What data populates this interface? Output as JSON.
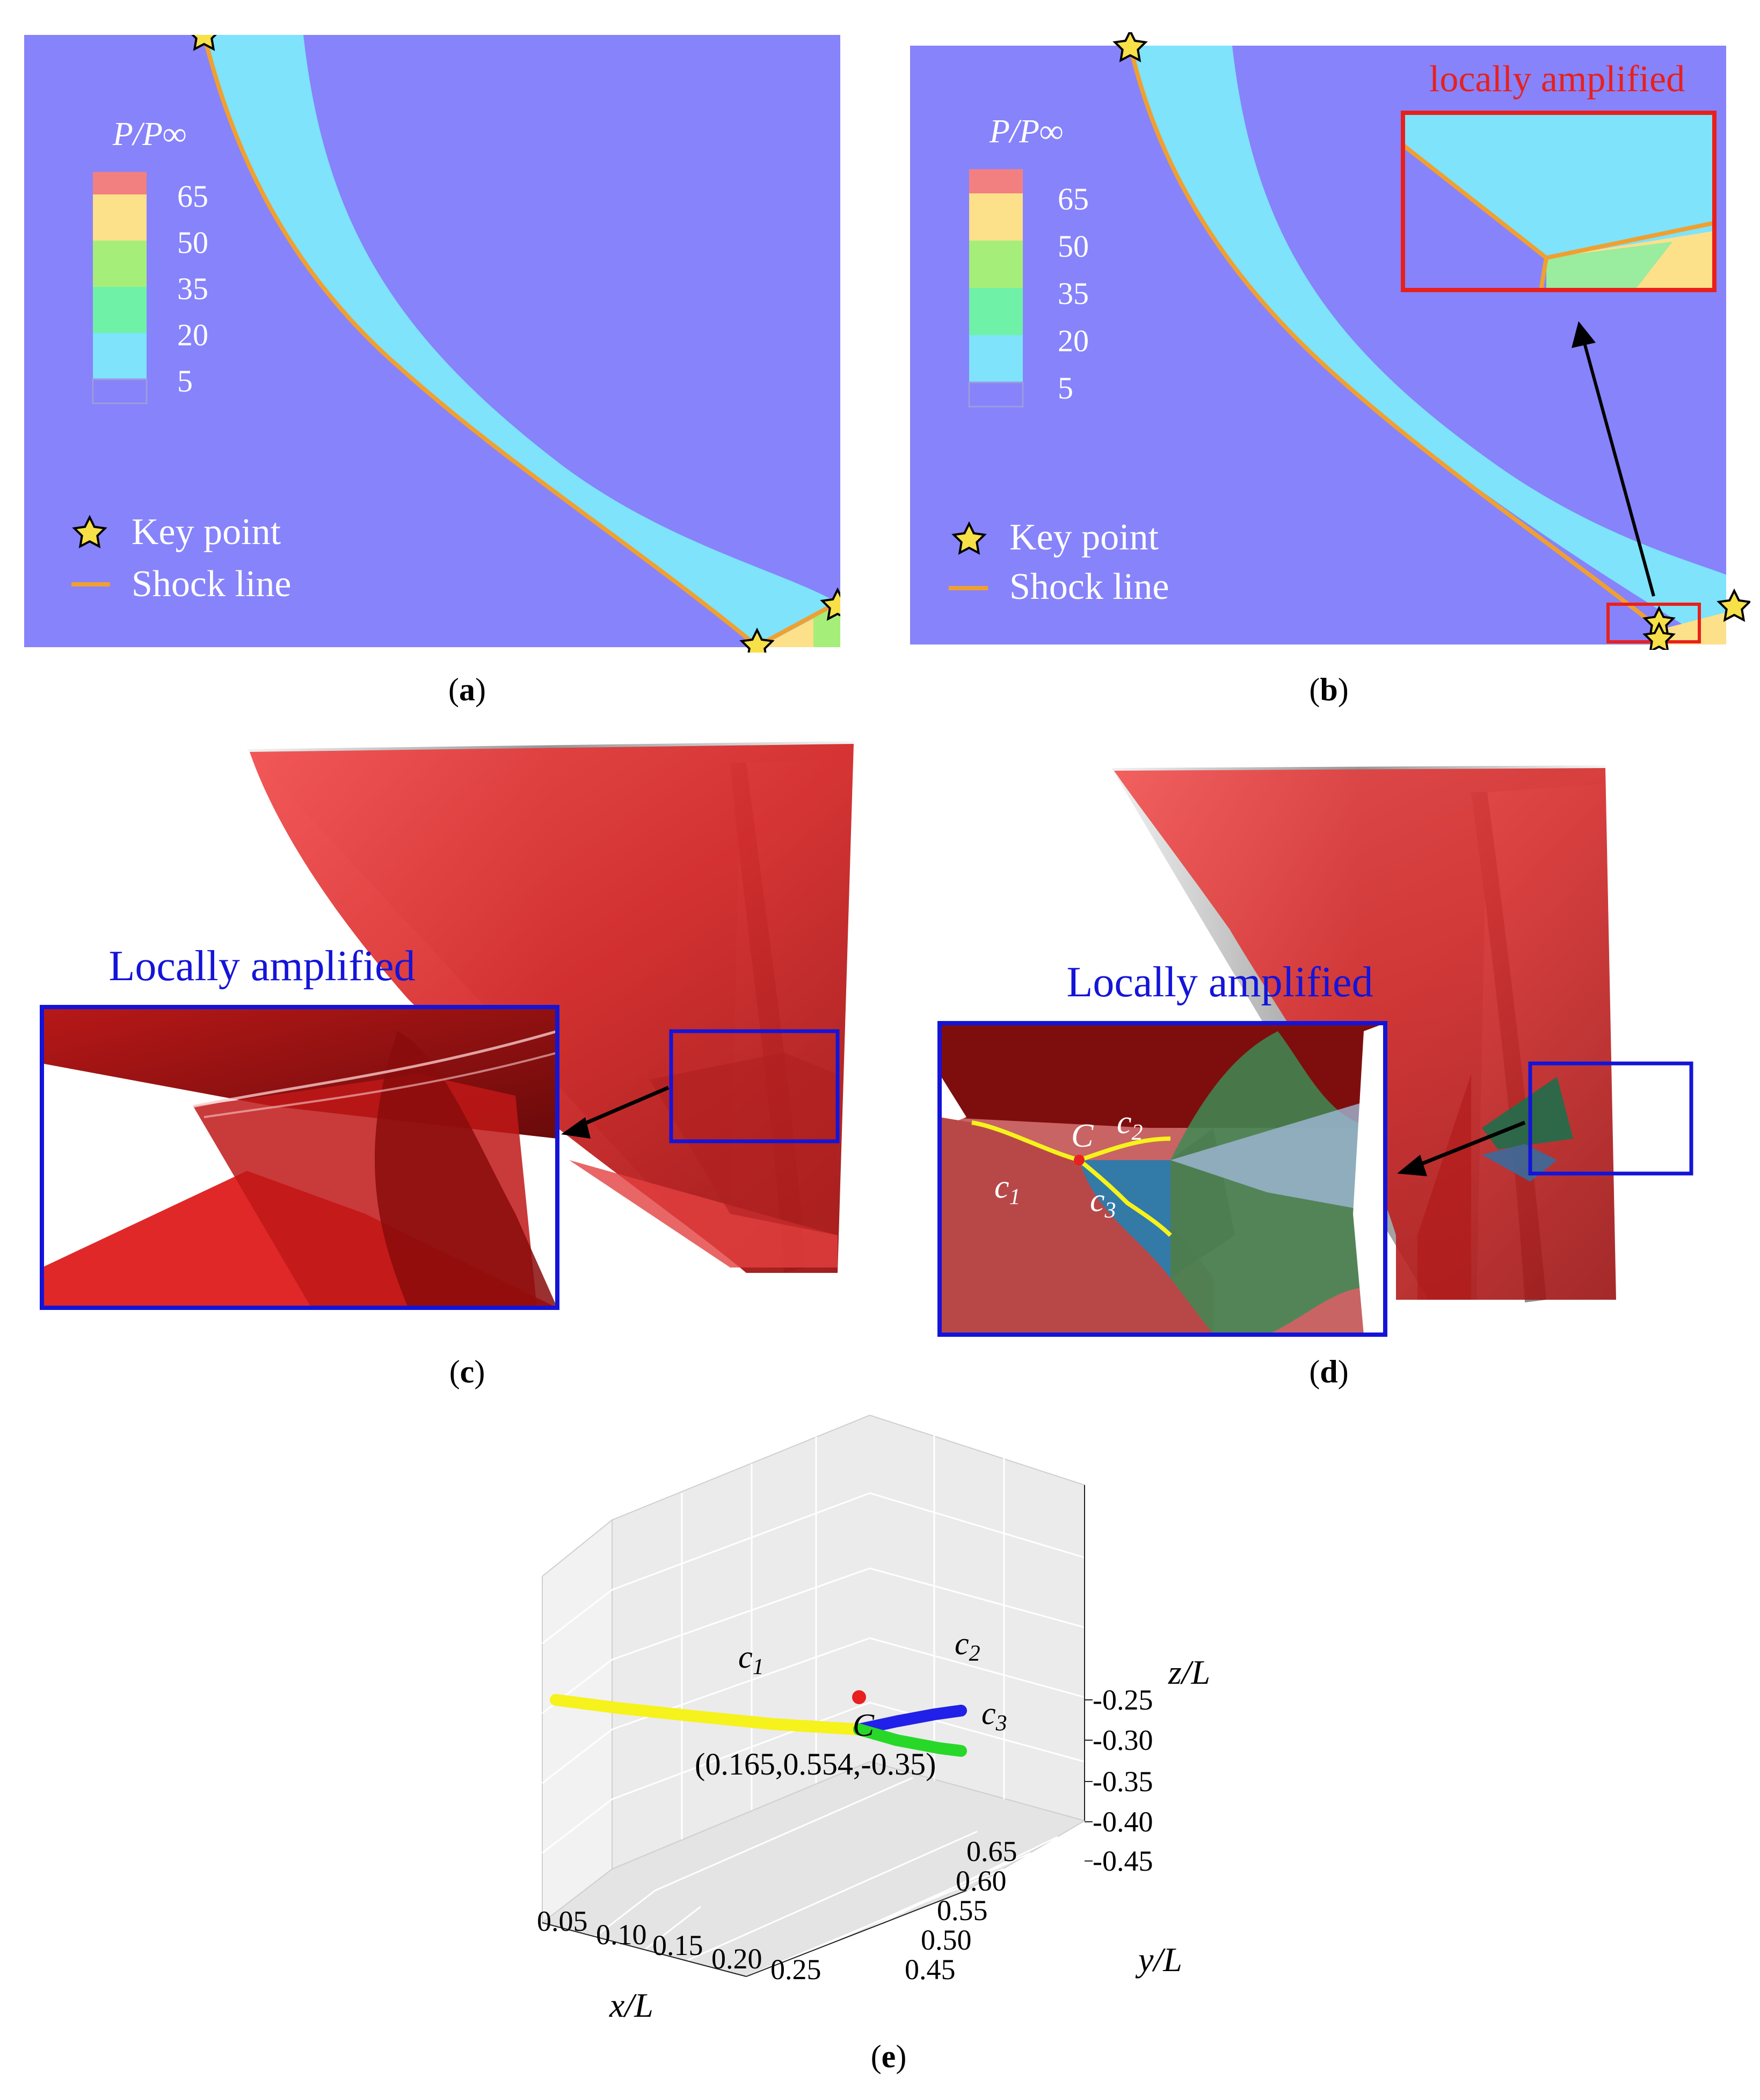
{
  "panels": {
    "a": {
      "caption_letter": "a",
      "colorbar": {
        "title": "P/P∞",
        "levels": [
          "65",
          "50",
          "35",
          "20",
          "5"
        ],
        "colors": [
          "#f28080",
          "#fde08a",
          "#a6ee7a",
          "#6ff1a8",
          "#7ee3fb",
          "#8783fb"
        ]
      },
      "legend": {
        "key_point": "Key point",
        "shock_line": "Shock line"
      }
    },
    "b": {
      "caption_letter": "b",
      "inset_title": "locally amplified",
      "colorbar": {
        "title": "P/P∞",
        "levels": [
          "65",
          "50",
          "35",
          "20",
          "5"
        ]
      },
      "legend": {
        "key_point": "Key point",
        "shock_line": "Shock line"
      }
    },
    "c": {
      "caption_letter": "c",
      "inset_title": "Locally amplified"
    },
    "d": {
      "caption_letter": "d",
      "inset_title": "Locally amplified",
      "labels": {
        "point": "C",
        "c1": "c",
        "c1_sub": "1",
        "c2": "c",
        "c2_sub": "2",
        "c3": "c",
        "c3_sub": "3"
      }
    },
    "e": {
      "caption_letter": "e"
    }
  },
  "colors": {
    "background_flow": "#8783fb",
    "shock_layer": "#7ee3fb",
    "shock_line": "#f0a030",
    "key_point_fill": "#f7e048",
    "inset_red": "#e8201c",
    "inset_blue": "#1414d8",
    "surface_red": "#d42a2a",
    "curve_yellow": "#f6f21c",
    "curve_blue": "#2020e8",
    "curve_green": "#28d828",
    "point_red": "#e82020"
  },
  "chart_data": {
    "type": "line3d",
    "xlabel": "x/L",
    "ylabel": "y/L",
    "zlabel": "z/L",
    "x_ticks": [
      "0.05",
      "0.10",
      "0.15",
      "0.20",
      "0.25"
    ],
    "y_ticks": [
      "0.45",
      "0.50",
      "0.55",
      "0.60",
      "0.65"
    ],
    "z_ticks": [
      "-0.25",
      "-0.30",
      "-0.35",
      "-0.40",
      "-0.45"
    ],
    "xlim": [
      0.05,
      0.25
    ],
    "ylim": [
      0.45,
      0.65
    ],
    "zlim": [
      -0.45,
      -0.25
    ],
    "point": {
      "name": "C",
      "coords_label": "(0.165,0.554,-0.35)"
    },
    "series": [
      {
        "name": "c",
        "sub": "1",
        "color": "yellow"
      },
      {
        "name": "c",
        "sub": "2",
        "color": "blue"
      },
      {
        "name": "c",
        "sub": "3",
        "color": "green"
      }
    ]
  }
}
